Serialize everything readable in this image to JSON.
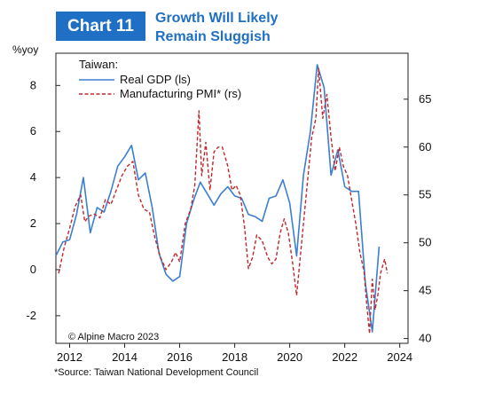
{
  "header": {
    "badge": "Chart 11",
    "title_line1": "Growth Will Likely",
    "title_line2": "Remain Sluggish"
  },
  "footer": {
    "source": "*Source: Taiwan National Development Council"
  },
  "colors": {
    "accent": "#1f6fc4",
    "gdp": "#3b7fd0",
    "pmi": "#c0272d"
  },
  "chart_data": {
    "type": "line",
    "title": "",
    "left_axis_label": "%yoy",
    "legend_title": "Taiwan:",
    "watermark": "© Alpine Macro 2023",
    "x_ticks": [
      "2012",
      "2014",
      "2016",
      "2018",
      "2020",
      "2022",
      "2024"
    ],
    "xlim": [
      2011.5,
      2024.3
    ],
    "y_left": {
      "ticks": [
        "-2",
        "0",
        "2",
        "4",
        "6",
        "8"
      ],
      "lim": [
        -3.2,
        9.4
      ]
    },
    "y_right": {
      "ticks": [
        "40",
        "45",
        "50",
        "55",
        "60",
        "65"
      ],
      "lim": [
        39.5,
        69.8
      ]
    },
    "series": [
      {
        "name": "Real GDP (ls)",
        "axis": "left",
        "style": "solid",
        "points": [
          [
            2011.5,
            0.6
          ],
          [
            2011.75,
            1.2
          ],
          [
            2012.0,
            1.3
          ],
          [
            2012.25,
            2.4
          ],
          [
            2012.5,
            4.0
          ],
          [
            2012.75,
            1.6
          ],
          [
            2013.0,
            2.7
          ],
          [
            2013.25,
            2.5
          ],
          [
            2013.5,
            3.4
          ],
          [
            2013.75,
            4.5
          ],
          [
            2014.0,
            4.9
          ],
          [
            2014.25,
            5.4
          ],
          [
            2014.5,
            3.9
          ],
          [
            2014.75,
            4.2
          ],
          [
            2015.0,
            2.7
          ],
          [
            2015.25,
            0.7
          ],
          [
            2015.5,
            -0.2
          ],
          [
            2015.75,
            -0.5
          ],
          [
            2016.0,
            -0.3
          ],
          [
            2016.25,
            2.0
          ],
          [
            2016.5,
            3.0
          ],
          [
            2016.75,
            3.8
          ],
          [
            2017.0,
            3.3
          ],
          [
            2017.25,
            2.8
          ],
          [
            2017.5,
            3.3
          ],
          [
            2017.75,
            3.6
          ],
          [
            2018.0,
            3.2
          ],
          [
            2018.25,
            3.1
          ],
          [
            2018.5,
            2.4
          ],
          [
            2018.75,
            2.3
          ],
          [
            2019.0,
            2.1
          ],
          [
            2019.25,
            3.1
          ],
          [
            2019.5,
            3.2
          ],
          [
            2019.75,
            3.9
          ],
          [
            2020.0,
            2.9
          ],
          [
            2020.25,
            0.6
          ],
          [
            2020.5,
            4.1
          ],
          [
            2020.75,
            6.0
          ],
          [
            2021.0,
            8.9
          ],
          [
            2021.25,
            7.9
          ],
          [
            2021.5,
            4.1
          ],
          [
            2021.75,
            5.2
          ],
          [
            2022.0,
            3.6
          ],
          [
            2022.25,
            3.4
          ],
          [
            2022.5,
            3.4
          ],
          [
            2022.75,
            -0.6
          ],
          [
            2023.0,
            -2.7
          ],
          [
            2023.25,
            1.0
          ]
        ]
      },
      {
        "name": "Manufacturing PMI* (rs)",
        "axis": "right",
        "style": "dashed",
        "points": [
          [
            2011.6,
            46.8
          ],
          [
            2011.8,
            49.5
          ],
          [
            2012.0,
            51.5
          ],
          [
            2012.2,
            53.8
          ],
          [
            2012.4,
            55.0
          ],
          [
            2012.55,
            52.2
          ],
          [
            2012.7,
            52.8
          ],
          [
            2012.9,
            53.0
          ],
          [
            2013.1,
            52.6
          ],
          [
            2013.3,
            54.5
          ],
          [
            2013.5,
            54.0
          ],
          [
            2013.7,
            55.5
          ],
          [
            2013.9,
            57.0
          ],
          [
            2014.1,
            58.0
          ],
          [
            2014.3,
            58.5
          ],
          [
            2014.5,
            55.0
          ],
          [
            2014.7,
            53.5
          ],
          [
            2014.9,
            53.2
          ],
          [
            2015.1,
            50.5
          ],
          [
            2015.3,
            48.5
          ],
          [
            2015.5,
            47.2
          ],
          [
            2015.7,
            48.0
          ],
          [
            2015.85,
            49.0
          ],
          [
            2016.0,
            48.0
          ],
          [
            2016.2,
            52.0
          ],
          [
            2016.4,
            53.5
          ],
          [
            2016.55,
            56.0
          ],
          [
            2016.7,
            63.8
          ],
          [
            2016.8,
            57.0
          ],
          [
            2016.95,
            60.5
          ],
          [
            2017.1,
            55.5
          ],
          [
            2017.25,
            59.5
          ],
          [
            2017.4,
            60.0
          ],
          [
            2017.55,
            60.0
          ],
          [
            2017.75,
            58.0
          ],
          [
            2017.9,
            55.5
          ],
          [
            2018.05,
            56.0
          ],
          [
            2018.2,
            55.0
          ],
          [
            2018.35,
            51.8
          ],
          [
            2018.5,
            47.3
          ],
          [
            2018.65,
            48.5
          ],
          [
            2018.8,
            50.8
          ],
          [
            2019.0,
            50.2
          ],
          [
            2019.2,
            48.5
          ],
          [
            2019.35,
            47.8
          ],
          [
            2019.5,
            48.3
          ],
          [
            2019.65,
            51.0
          ],
          [
            2019.8,
            52.5
          ],
          [
            2019.95,
            51.0
          ],
          [
            2020.1,
            48.0
          ],
          [
            2020.25,
            44.5
          ],
          [
            2020.4,
            49.0
          ],
          [
            2020.6,
            55.0
          ],
          [
            2020.8,
            61.0
          ],
          [
            2020.95,
            63.0
          ],
          [
            2021.05,
            68.2
          ],
          [
            2021.2,
            63.0
          ],
          [
            2021.35,
            65.5
          ],
          [
            2021.5,
            61.0
          ],
          [
            2021.65,
            57.5
          ],
          [
            2021.8,
            60.0
          ],
          [
            2021.95,
            58.0
          ],
          [
            2022.1,
            57.0
          ],
          [
            2022.25,
            54.5
          ],
          [
            2022.4,
            52.0
          ],
          [
            2022.55,
            49.0
          ],
          [
            2022.7,
            47.0
          ],
          [
            2022.8,
            43.5
          ],
          [
            2022.9,
            40.5
          ],
          [
            2023.0,
            46.2
          ],
          [
            2023.1,
            43.0
          ],
          [
            2023.2,
            44.5
          ],
          [
            2023.3,
            46.8
          ],
          [
            2023.45,
            48.3
          ],
          [
            2023.55,
            46.8
          ]
        ]
      }
    ]
  }
}
